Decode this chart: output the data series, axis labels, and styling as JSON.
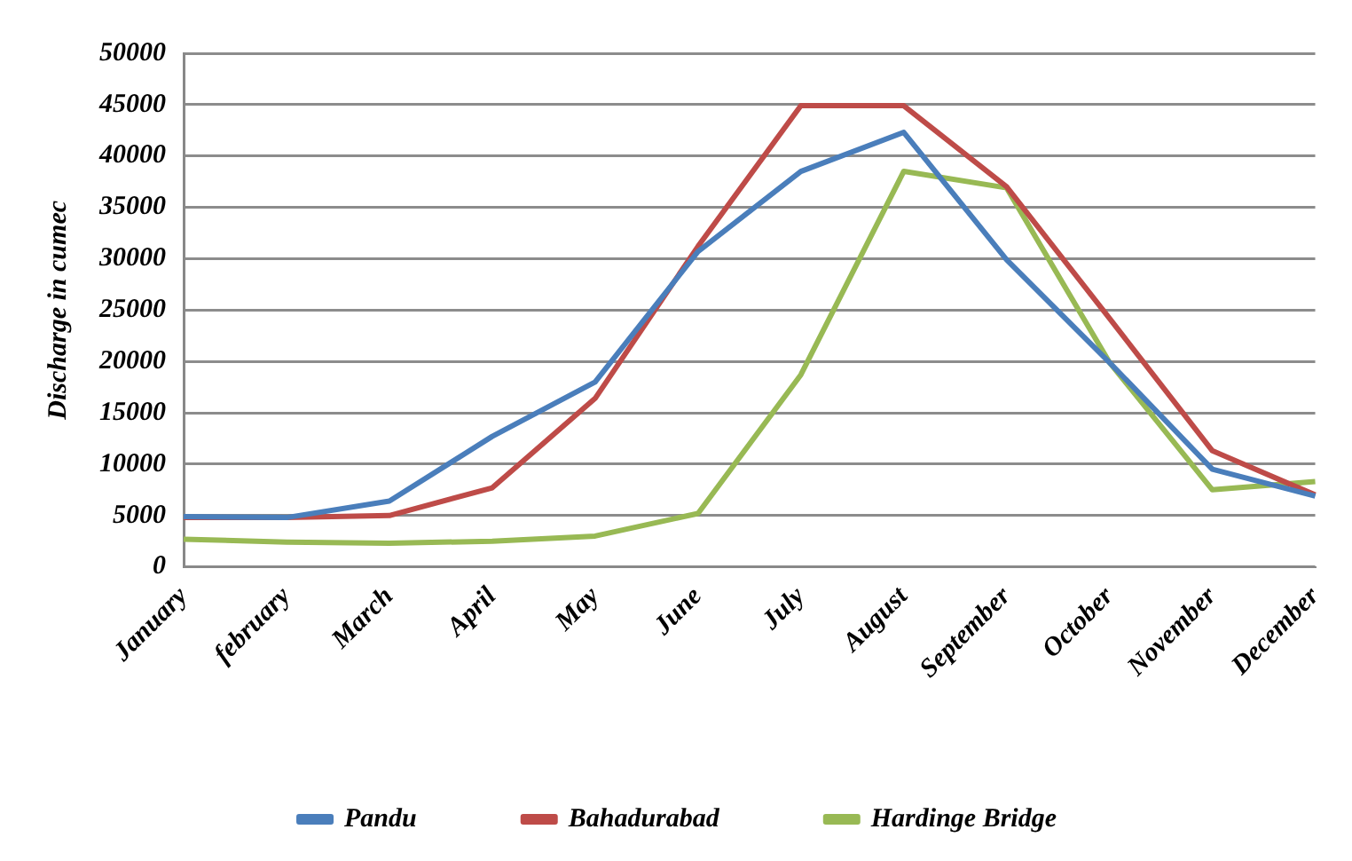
{
  "chart_data": {
    "type": "line",
    "ylabel": "Discharge in cumec",
    "categories": [
      "January",
      "february",
      "March",
      "April",
      "May",
      "June",
      "July",
      "August",
      "September",
      "October",
      "November",
      "December"
    ],
    "series": [
      {
        "name": "Pandu",
        "color": "#4a7ebb",
        "values": [
          4900,
          4800,
          6400,
          12700,
          18000,
          30700,
          38500,
          42300,
          29900,
          19900,
          9500,
          6900
        ]
      },
      {
        "name": "Bahadurabad",
        "color": "#be4b48",
        "values": [
          4800,
          4800,
          5000,
          7700,
          16400,
          31200,
          44900,
          44900,
          37000,
          24200,
          11300,
          7000
        ]
      },
      {
        "name": "Hardinge Bridge",
        "color": "#98b954",
        "values": [
          2700,
          2400,
          2300,
          2500,
          3000,
          5200,
          18700,
          38500,
          36900,
          19900,
          7500,
          8300
        ]
      }
    ],
    "ylim": [
      0,
      50000
    ],
    "yticks": [
      0,
      5000,
      10000,
      15000,
      20000,
      25000,
      30000,
      35000,
      40000,
      45000,
      50000
    ],
    "grid": "y",
    "legend": "bottom",
    "marker": "none",
    "line_style": "solid"
  }
}
